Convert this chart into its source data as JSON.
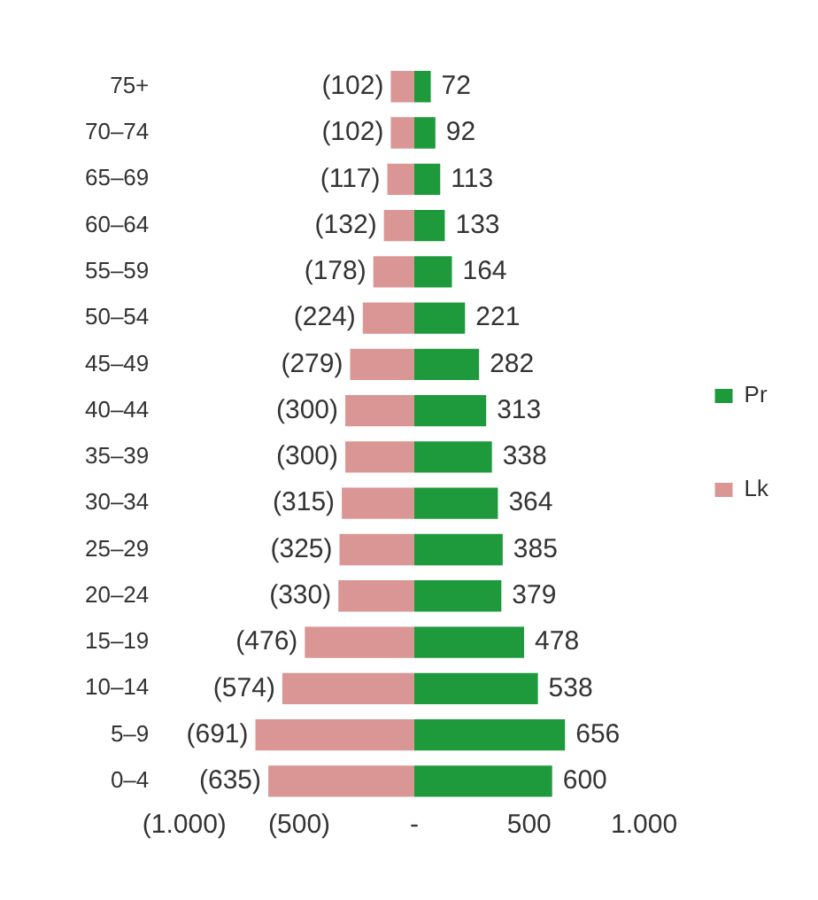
{
  "chart_data": {
    "type": "bar",
    "orientation": "horizontal",
    "stacked": true,
    "legend": "right",
    "categories": [
      "75+",
      "70–74",
      "65–69",
      "60–64",
      "55–59",
      "50–54",
      "45–49",
      "40–44",
      "35–39",
      "30–34",
      "25–29",
      "20–24",
      "15–19",
      "10–14",
      "5–9",
      "0–4"
    ],
    "series": [
      {
        "name": "Pr",
        "color": "#1e9a3c",
        "values": [
          72,
          92,
          113,
          133,
          164,
          221,
          282,
          313,
          338,
          364,
          385,
          379,
          478,
          538,
          656,
          600
        ],
        "value_labels": [
          "72",
          "92",
          "113",
          "133",
          "164",
          "221",
          "282",
          "313",
          "338",
          "364",
          "385",
          "379",
          "478",
          "538",
          "656",
          "600"
        ]
      },
      {
        "name": "Lk",
        "color": "#d99694",
        "values": [
          -102,
          -102,
          -117,
          -132,
          -178,
          -224,
          -279,
          -300,
          -300,
          -315,
          -325,
          -330,
          -476,
          -574,
          -691,
          -635
        ],
        "value_labels": [
          "(102)",
          "(102)",
          "(117)",
          "(132)",
          "(178)",
          "(224)",
          "(279)",
          "(300)",
          "(300)",
          "(315)",
          "(325)",
          "(330)",
          "(476)",
          "(574)",
          "(691)",
          "(635)"
        ]
      }
    ],
    "xlim": [
      -1000,
      1000
    ],
    "xticks": [
      {
        "value": -1000,
        "label": "(1.000)"
      },
      {
        "value": -500,
        "label": "(500)"
      },
      {
        "value": 0,
        "label": "-"
      },
      500,
      {
        "value": 1000,
        "label": "1.000"
      }
    ]
  }
}
